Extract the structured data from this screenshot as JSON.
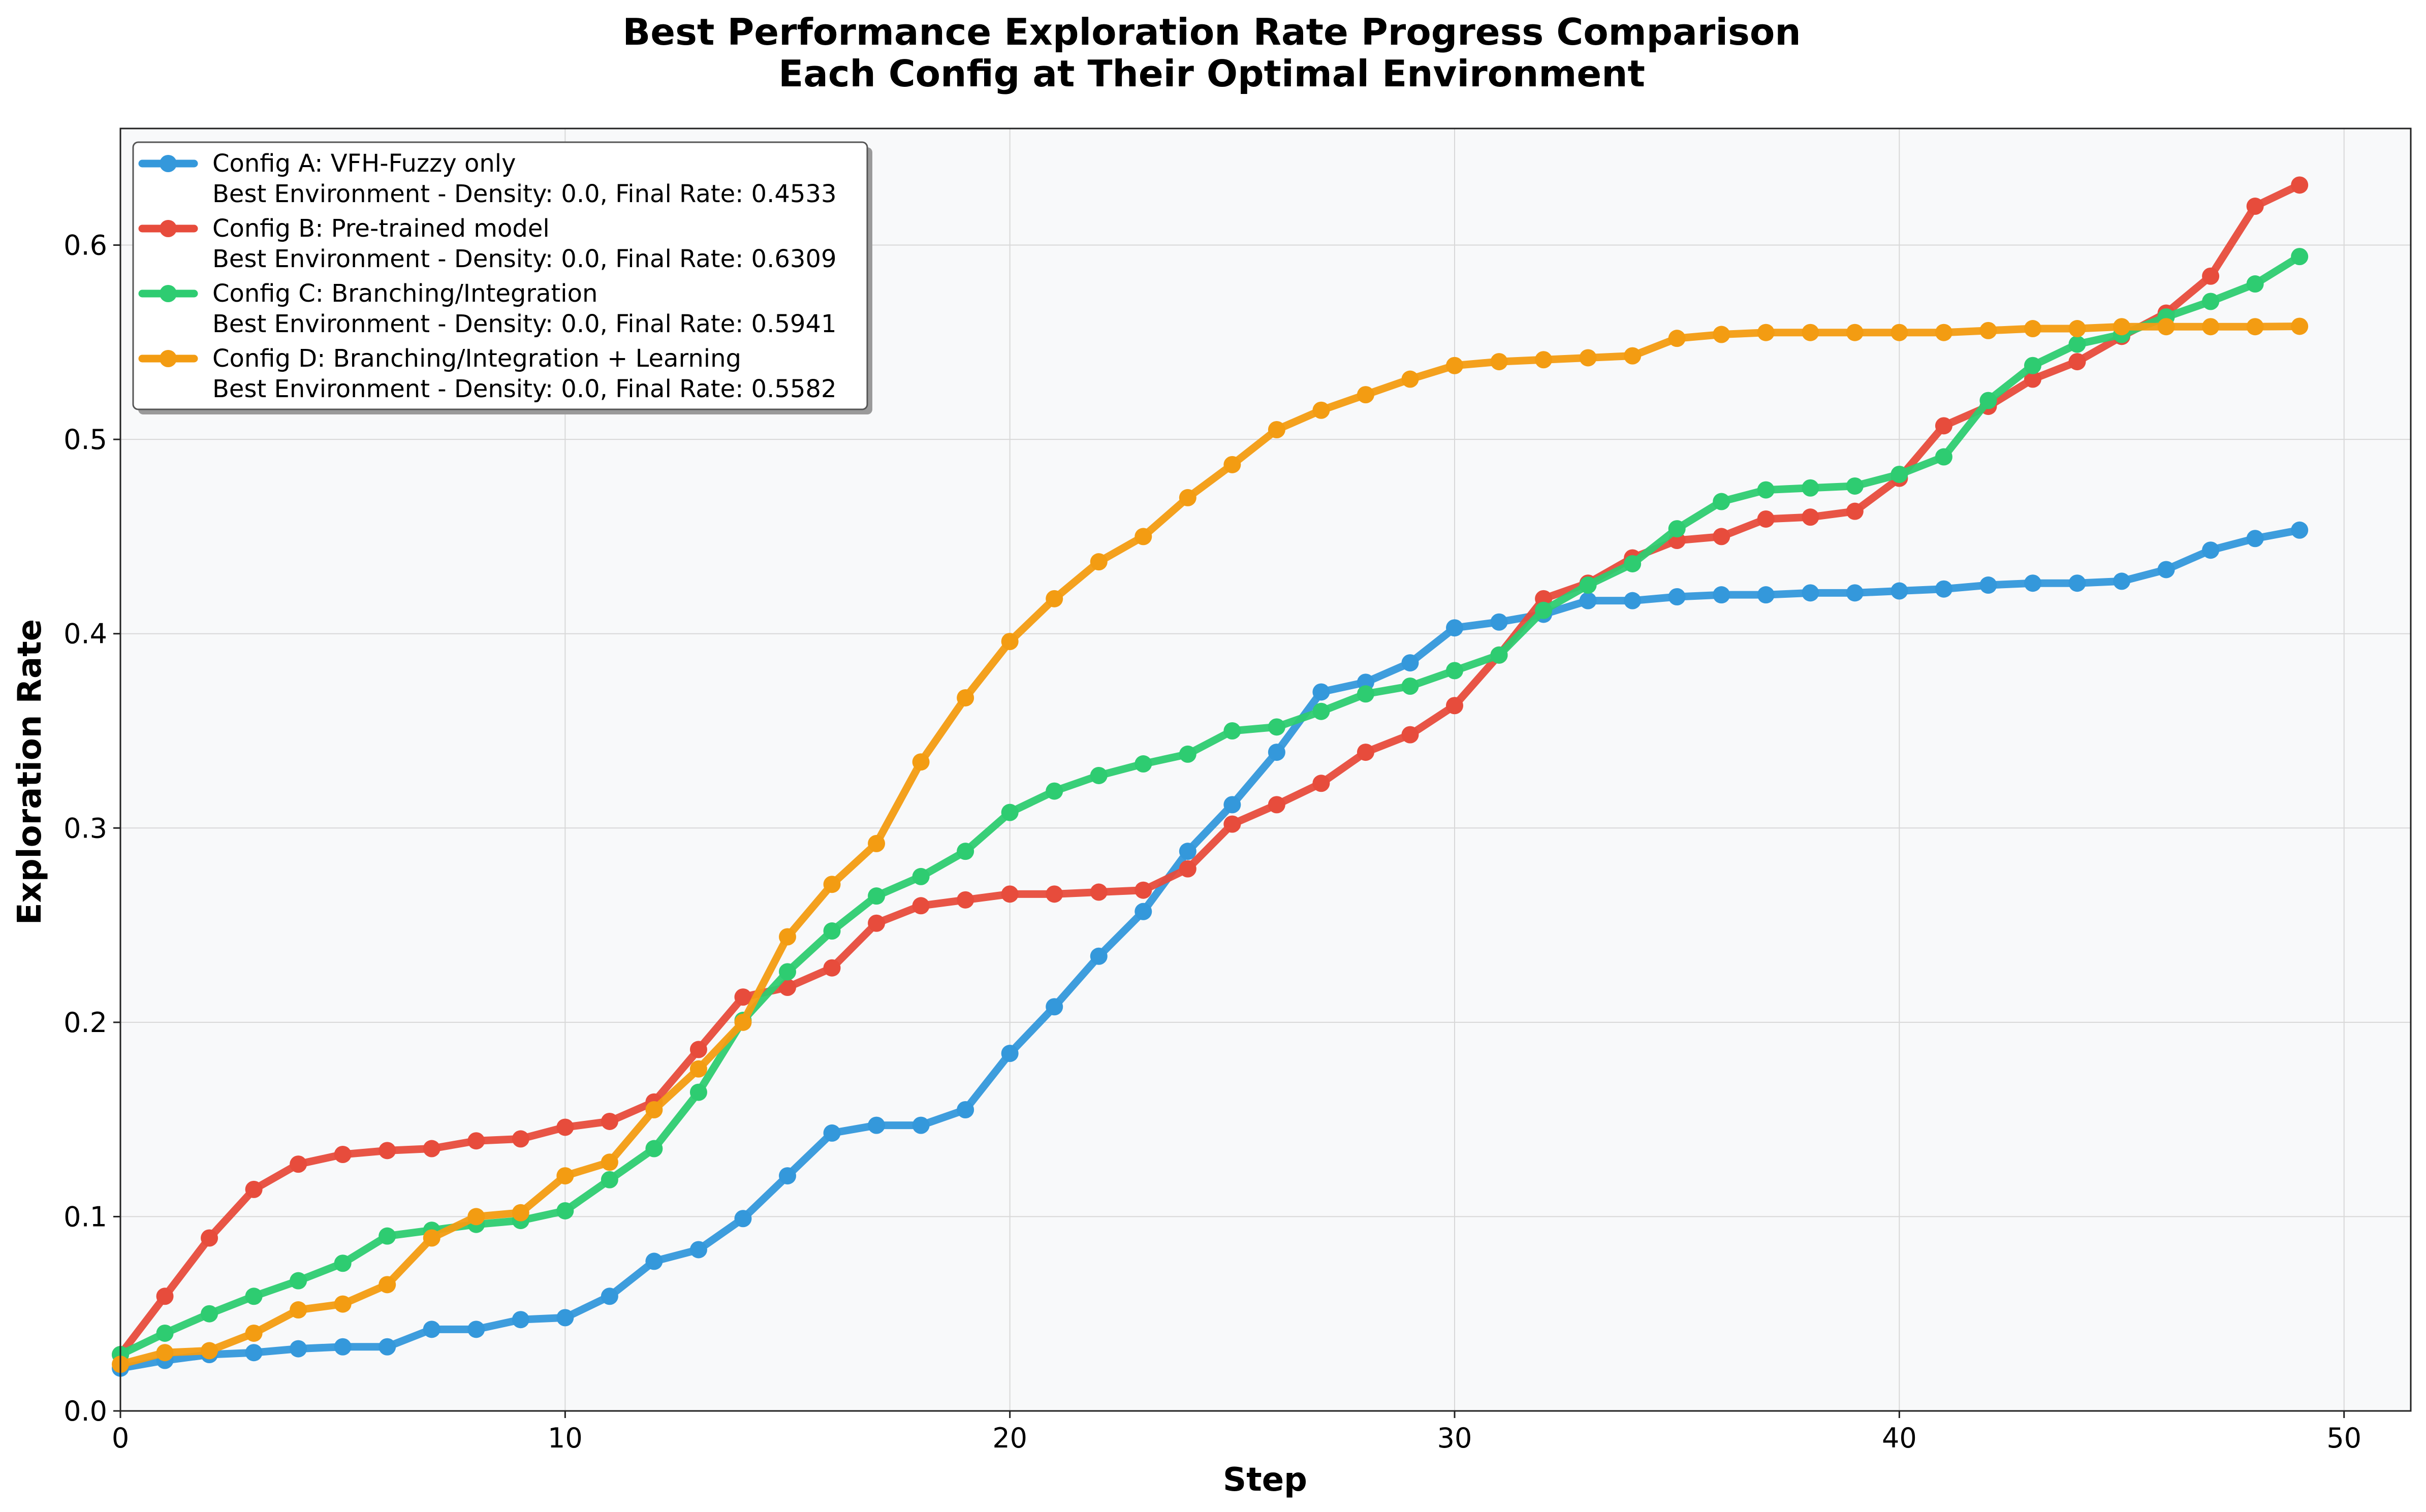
{
  "chart_data": {
    "type": "line",
    "title": "Best Performance Exploration Rate Progress Comparison",
    "subtitle": "Each Config at Their Optimal Environment",
    "xlabel": "Step",
    "ylabel": "Exploration Rate",
    "xlim": [
      0,
      51.5
    ],
    "ylim": [
      0,
      0.66
    ],
    "xticks": [
      "0",
      "10",
      "20",
      "30",
      "40",
      "50"
    ],
    "yticks": [
      "0.0",
      "0.1",
      "0.2",
      "0.3",
      "0.4",
      "0.5",
      "0.6"
    ],
    "grid": true,
    "legend_position": "upper-left",
    "background": "#f8f9fa",
    "x": [
      0,
      1,
      2,
      3,
      4,
      5,
      6,
      7,
      8,
      9,
      10,
      11,
      12,
      13,
      14,
      15,
      16,
      17,
      18,
      19,
      20,
      21,
      22,
      23,
      24,
      25,
      26,
      27,
      28,
      29,
      30,
      31,
      32,
      33,
      34,
      35,
      36,
      37,
      38,
      39,
      40,
      41,
      42,
      43,
      44,
      45,
      46,
      47,
      48,
      49
    ],
    "series": [
      {
        "name": "Config A: VFH-Fuzzy only",
        "detail": "Best Environment - Density: 0.0, Final Rate: 0.4533",
        "color": "#3498db",
        "values": [
          0.022,
          0.026,
          0.029,
          0.03,
          0.032,
          0.033,
          0.033,
          0.042,
          0.042,
          0.047,
          0.048,
          0.059,
          0.077,
          0.083,
          0.099,
          0.121,
          0.143,
          0.147,
          0.147,
          0.155,
          0.184,
          0.208,
          0.234,
          0.257,
          0.288,
          0.312,
          0.339,
          0.37,
          0.375,
          0.385,
          0.403,
          0.406,
          0.41,
          0.417,
          0.417,
          0.419,
          0.42,
          0.42,
          0.421,
          0.421,
          0.422,
          0.423,
          0.425,
          0.426,
          0.426,
          0.427,
          0.433,
          0.443,
          0.449,
          0.4533
        ]
      },
      {
        "name": "Config B: Pre-trained model",
        "detail": "Best Environment - Density: 0.0, Final Rate: 0.6309",
        "color": "#e74c3c",
        "values": [
          0.029,
          0.059,
          0.089,
          0.114,
          0.127,
          0.132,
          0.134,
          0.135,
          0.139,
          0.14,
          0.146,
          0.149,
          0.159,
          0.186,
          0.213,
          0.218,
          0.228,
          0.251,
          0.26,
          0.263,
          0.266,
          0.266,
          0.267,
          0.268,
          0.279,
          0.302,
          0.312,
          0.323,
          0.339,
          0.348,
          0.363,
          0.389,
          0.418,
          0.426,
          0.439,
          0.448,
          0.45,
          0.459,
          0.46,
          0.463,
          0.48,
          0.507,
          0.517,
          0.531,
          0.54,
          0.553,
          0.565,
          0.584,
          0.62,
          0.6309
        ]
      },
      {
        "name": "Config C: Branching/Integration",
        "detail": "Best Environment - Density: 0.0, Final Rate: 0.5941",
        "color": "#2ecc71",
        "values": [
          0.029,
          0.04,
          0.05,
          0.059,
          0.067,
          0.076,
          0.09,
          0.093,
          0.096,
          0.098,
          0.103,
          0.119,
          0.135,
          0.164,
          0.201,
          0.226,
          0.247,
          0.265,
          0.275,
          0.288,
          0.308,
          0.319,
          0.327,
          0.333,
          0.338,
          0.35,
          0.352,
          0.36,
          0.369,
          0.373,
          0.381,
          0.389,
          0.412,
          0.425,
          0.436,
          0.454,
          0.468,
          0.474,
          0.475,
          0.476,
          0.482,
          0.491,
          0.52,
          0.538,
          0.549,
          0.554,
          0.563,
          0.571,
          0.58,
          0.5941
        ]
      },
      {
        "name": "Config D: Branching/Integration + Learning",
        "detail": "Best Environment - Density: 0.0, Final Rate: 0.5582",
        "color": "#f39c12",
        "values": [
          0.024,
          0.03,
          0.031,
          0.04,
          0.052,
          0.055,
          0.065,
          0.089,
          0.1,
          0.102,
          0.121,
          0.128,
          0.155,
          0.176,
          0.2,
          0.244,
          0.271,
          0.292,
          0.334,
          0.367,
          0.396,
          0.418,
          0.437,
          0.45,
          0.47,
          0.487,
          0.505,
          0.515,
          0.523,
          0.531,
          0.538,
          0.54,
          0.541,
          0.542,
          0.543,
          0.552,
          0.554,
          0.555,
          0.555,
          0.555,
          0.555,
          0.555,
          0.556,
          0.557,
          0.557,
          0.558,
          0.558,
          0.558,
          0.558,
          0.5582
        ]
      }
    ]
  }
}
